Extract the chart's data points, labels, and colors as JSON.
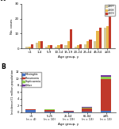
{
  "panel_A": {
    "age_groups": [
      "<1",
      "1-4",
      "5-9",
      "10-14",
      "15-19",
      "20-24",
      "25-44",
      "45-64",
      "≥65"
    ],
    "years": [
      "2007",
      "2008",
      "2009"
    ],
    "colors": [
      "#d4c89a",
      "#e8b84b",
      "#c0392b"
    ],
    "values_2007": [
      1,
      4,
      1,
      1,
      2,
      1,
      3,
      5,
      14
    ],
    "values_2008": [
      1,
      5,
      2,
      2,
      5,
      2,
      5,
      12,
      15
    ],
    "values_2009": [
      3,
      5,
      2,
      3,
      13,
      3,
      6,
      14,
      25
    ],
    "ylabel": "No. cases",
    "xlabel": "Age group, y",
    "ylim": [
      0,
      30
    ],
    "yticks": [
      0,
      10,
      20,
      30
    ]
  },
  "panel_B": {
    "age_groups": [
      "<5\n(n = 4)",
      "5-25\n(n = 10)",
      "25-64\n(n = 19)",
      "65-84\n(n = 13)",
      "≥85\n(n = 13)"
    ],
    "features": [
      "Meningitis",
      "Pneumonia",
      "Septicaemia",
      "Other"
    ],
    "colors": [
      "#4472c4",
      "#c0392b",
      "#92d050",
      "#7030a0"
    ],
    "meningitis": [
      0.6,
      0.15,
      0.1,
      0.25,
      0.4
    ],
    "pneumonia": [
      0.2,
      0.55,
      0.25,
      0.9,
      9.5
    ],
    "septicaemia": [
      0.1,
      0.1,
      0.05,
      0.2,
      0.6
    ],
    "other": [
      0.1,
      0.1,
      0.05,
      0.15,
      0.5
    ],
    "ylabel": "Incidence(/1 million population",
    "xlabel": "Age group, y",
    "ylim": [
      0,
      12
    ],
    "yticks": [
      0,
      2,
      4,
      6,
      8,
      10,
      12
    ]
  }
}
